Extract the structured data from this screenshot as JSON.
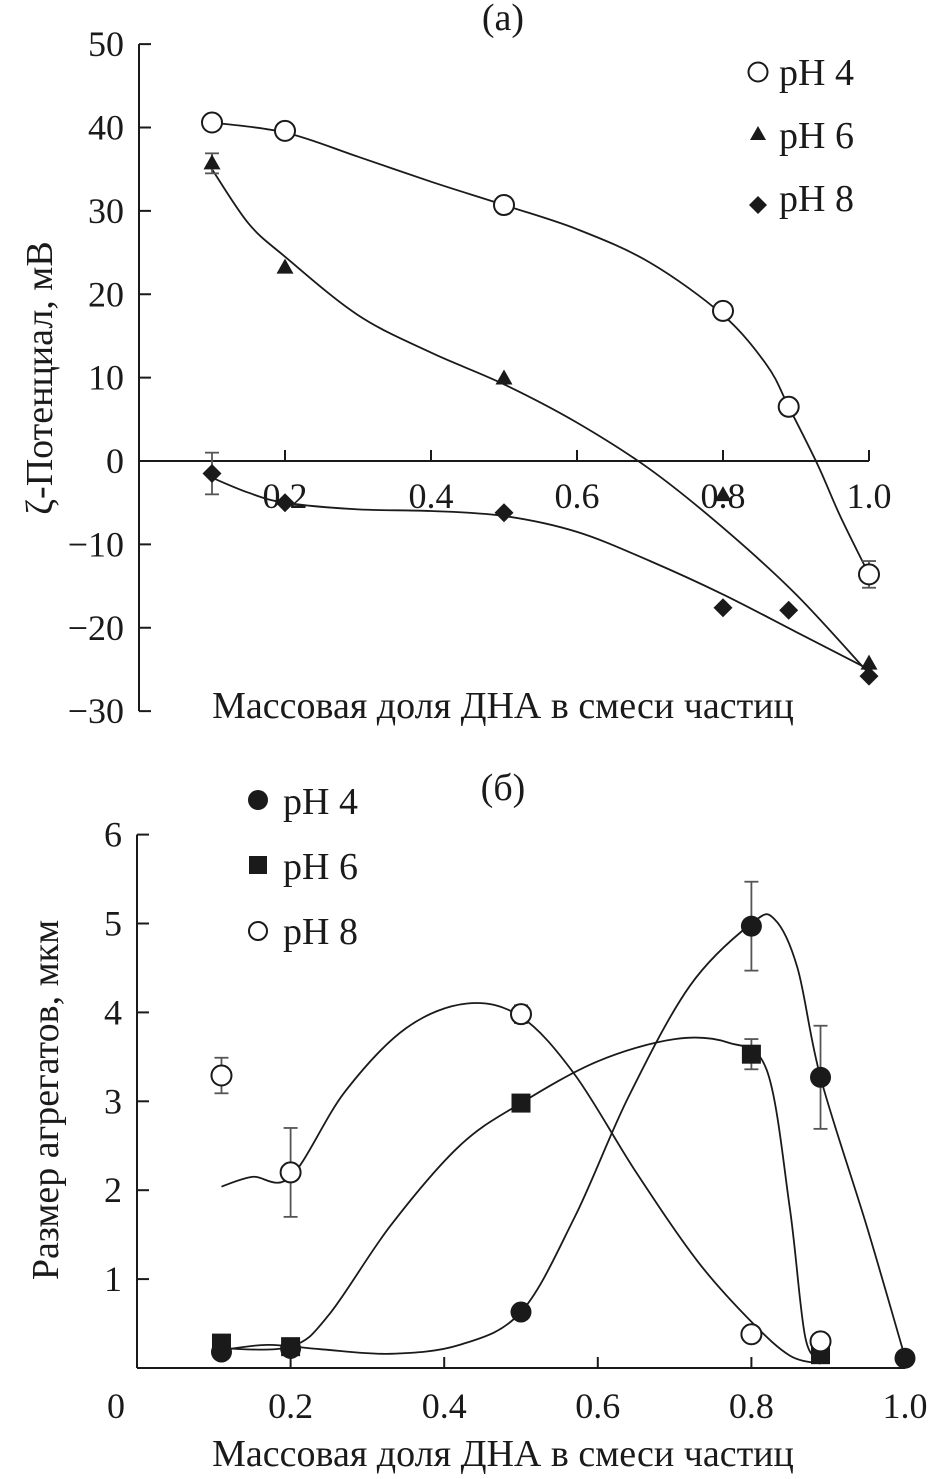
{
  "chart_data": [
    {
      "type": "scatter",
      "title": "(a)",
      "xlabel": "Массовая доля ДНА в смеси частиц",
      "ylabel": "ζ-Потенциал, мВ",
      "xlim": [
        0.0,
        1.0
      ],
      "ylim": [
        -30,
        50
      ],
      "xticks": [
        "0.2",
        "0.4",
        "0.6",
        "0.8",
        "1.0"
      ],
      "yticks": [
        "50",
        "40",
        "30",
        "20",
        "10",
        "0",
        "−10",
        "−20",
        "−30"
      ],
      "legend_position": "top-right",
      "series": [
        {
          "name": "pH 4",
          "marker": "open-circle",
          "x": [
            0.1,
            0.2,
            0.5,
            0.8,
            0.89,
            1.0
          ],
          "y": [
            40.6,
            39.6,
            30.7,
            18.0,
            6.5,
            -13.6
          ],
          "err": [
            0,
            0,
            0,
            0,
            0,
            1.6
          ]
        },
        {
          "name": "pH 6",
          "marker": "filled-triangle",
          "x": [
            0.1,
            0.2,
            0.5,
            0.8,
            1.0
          ],
          "y": [
            35.7,
            23.2,
            9.9,
            -4.1,
            -24.3
          ],
          "err": [
            1.2,
            0,
            0,
            0,
            0
          ]
        },
        {
          "name": "pH 8",
          "marker": "filled-diamond",
          "x": [
            0.1,
            0.2,
            0.5,
            0.8,
            0.89,
            1.0
          ],
          "y": [
            -1.5,
            -5.0,
            -6.2,
            -17.6,
            -17.9,
            -25.8
          ],
          "err": [
            2.5,
            0,
            0,
            0,
            0,
            0
          ]
        }
      ]
    },
    {
      "type": "scatter",
      "title": "(б)",
      "xlabel": "Массовая доля ДНА в смеси частиц",
      "ylabel": "Размер агрегатов, мкм",
      "xlim": [
        0.0,
        1.0
      ],
      "ylim": [
        0,
        6
      ],
      "xticks": [
        "0",
        "0.2",
        "0.4",
        "0.6",
        "0.8",
        "1.0"
      ],
      "yticks": [
        "6",
        "5",
        "4",
        "3",
        "2",
        "1"
      ],
      "legend_position": "top-left",
      "series": [
        {
          "name": "pH 4",
          "marker": "filled-circle",
          "x": [
            0.11,
            0.2,
            0.5,
            0.8,
            0.89,
            1.0
          ],
          "y": [
            0.18,
            0.22,
            0.63,
            4.97,
            3.27,
            0.11
          ],
          "err": [
            0,
            0,
            0,
            0.5,
            0.58,
            0
          ]
        },
        {
          "name": "pH 6",
          "marker": "filled-square",
          "x": [
            0.11,
            0.2,
            0.5,
            0.8,
            0.89
          ],
          "y": [
            0.28,
            0.24,
            2.98,
            3.53,
            0.15
          ],
          "err": [
            0,
            0,
            0,
            0.17,
            0
          ]
        },
        {
          "name": "pH 8",
          "marker": "open-circle",
          "x": [
            0.11,
            0.2,
            0.5,
            0.8,
            0.89
          ],
          "y": [
            3.29,
            2.2,
            3.98,
            0.38,
            0.3
          ],
          "err": [
            0.2,
            0.5,
            0.1,
            0,
            0
          ]
        }
      ]
    }
  ]
}
